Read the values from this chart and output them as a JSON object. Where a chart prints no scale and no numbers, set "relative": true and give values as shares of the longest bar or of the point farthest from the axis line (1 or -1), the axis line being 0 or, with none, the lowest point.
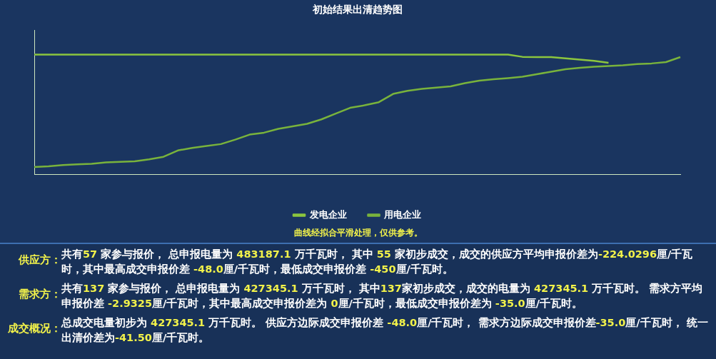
{
  "chart_data": {
    "type": "line",
    "title": "初始结果出清趋势图",
    "relative": true,
    "legend": "bottom",
    "grid": false,
    "marker": "none",
    "categories": [
      null,
      null,
      null,
      null,
      null,
      null,
      null,
      null,
      null,
      null,
      null,
      null,
      null,
      null,
      null,
      null,
      null,
      null,
      null,
      null,
      null,
      null,
      null,
      null,
      null,
      null,
      null,
      null,
      null,
      null,
      null,
      null,
      null,
      null,
      null,
      null,
      null,
      null,
      null,
      null,
      null,
      null,
      null,
      null,
      null,
      null
    ],
    "series": [
      {
        "name": "发电企业",
        "color": "#8cc63e",
        "values": [
          1,
          1,
          1,
          1,
          1,
          1,
          1,
          1,
          1,
          1,
          1,
          1,
          1,
          1,
          1,
          1,
          1,
          1,
          1,
          1,
          1,
          1,
          1,
          1,
          1,
          1,
          1,
          1,
          1,
          1,
          1,
          1,
          1,
          1,
          0.981,
          0.979,
          0.979,
          0.968,
          0.958,
          0.947,
          0.931,
          null,
          null,
          null,
          null,
          null
        ]
      },
      {
        "name": "用电企业",
        "color": "#79b33c",
        "values": [
          0.063,
          0.069,
          0.079,
          0.085,
          0.09,
          0.101,
          0.106,
          0.111,
          0.127,
          0.148,
          0.201,
          0.222,
          0.238,
          0.254,
          0.291,
          0.333,
          0.349,
          0.381,
          0.402,
          0.423,
          0.46,
          0.508,
          0.556,
          0.577,
          0.603,
          0.672,
          0.698,
          0.714,
          0.725,
          0.735,
          0.762,
          0.783,
          0.794,
          0.804,
          0.815,
          0.836,
          0.857,
          0.878,
          0.889,
          0.899,
          0.905,
          0.91,
          0.921,
          0.926,
          0.937,
          0.979
        ]
      }
    ],
    "annotations": [
      "曲线经拟合平滑处理，仅供参考。",
      "供应方：",
      "共有57 家参与报价， 总申报电量为 483187.1 万千瓦时， 其中 55 家初步成交，成交的供应方平均申报价差为-224.0296厘/千瓦时，其中最高成交申报价差 -48.0厘/千瓦时，最低成交申报价差 -450厘/千瓦时。",
      "需求方：",
      "共有137 家参与报价， 总申报电量为 427345.1 万千瓦时， 其中137家初步成交，成交的电量为 427345.1 万千瓦时。 需求方平均申报价差 -2.9325厘/千瓦时，其中最高成交申报价差为 0厘/千瓦时，最低成交申报价差为 -35.0厘/千瓦时。",
      "成交概况：",
      "总成交电量初步为 427345.1 万千瓦时。 供应方边际成交申报价差 -48.0厘/千瓦时， 需求方边际成交申报价差-35.0厘/千瓦时， 统一出清价差为-41.50厘/千瓦时。"
    ]
  }
}
